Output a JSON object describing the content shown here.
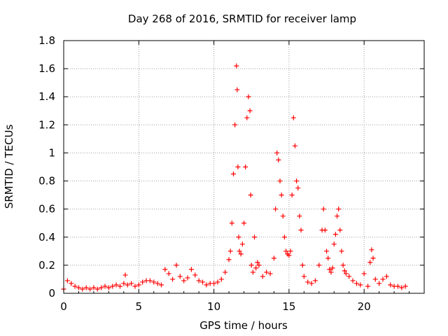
{
  "chart_data": {
    "type": "scatter",
    "title": "Day 268 of 2016, SRMTID for receiver lamp",
    "xlabel": "GPS time / hours",
    "ylabel": "SRMTID / TECUs",
    "xlim": [
      0,
      24
    ],
    "ylim": [
      0,
      1.8
    ],
    "xticks": [
      0,
      5,
      10,
      15,
      20
    ],
    "yticks": [
      0,
      0.2,
      0.4,
      0.6,
      0.8,
      1,
      1.2,
      1.4,
      1.6,
      1.8
    ],
    "xtick_labels": [
      "0",
      "5",
      "10",
      "15",
      "20"
    ],
    "ytick_labels": [
      "0",
      "0.2",
      "0.4",
      "0.6",
      "0.8",
      "1",
      "1.2",
      "1.4",
      "1.6",
      "1.8"
    ],
    "grid": true,
    "marker": "+",
    "color": "#ff0000",
    "series": [
      {
        "name": "SRMTID",
        "x": [
          0.0,
          0.25,
          0.5,
          0.75,
          1.0,
          1.25,
          1.5,
          1.75,
          2.0,
          2.25,
          2.5,
          2.75,
          3.0,
          3.25,
          3.5,
          3.75,
          4.0,
          4.1,
          4.25,
          4.5,
          4.75,
          5.0,
          5.25,
          5.5,
          5.75,
          6.0,
          6.25,
          6.5,
          6.75,
          7.0,
          7.25,
          7.5,
          7.75,
          8.0,
          8.25,
          8.5,
          8.75,
          9.0,
          9.25,
          9.5,
          9.75,
          10.0,
          10.25,
          10.5,
          10.75,
          11.0,
          11.1,
          11.2,
          11.3,
          11.4,
          11.5,
          11.55,
          11.6,
          11.65,
          11.7,
          11.8,
          11.9,
          12.0,
          12.1,
          12.2,
          12.3,
          12.4,
          12.45,
          12.5,
          12.6,
          12.7,
          12.8,
          12.9,
          13.0,
          13.25,
          13.5,
          13.75,
          14.0,
          14.1,
          14.2,
          14.3,
          14.4,
          14.5,
          14.6,
          14.7,
          14.8,
          14.9,
          15.0,
          15.1,
          15.2,
          15.3,
          15.4,
          15.5,
          15.6,
          15.7,
          15.8,
          15.9,
          16.0,
          16.25,
          16.5,
          16.75,
          17.0,
          17.2,
          17.3,
          17.4,
          17.5,
          17.6,
          17.7,
          17.8,
          17.9,
          18.0,
          18.1,
          18.2,
          18.3,
          18.4,
          18.5,
          18.6,
          18.7,
          18.8,
          19.0,
          19.25,
          19.5,
          19.75,
          20.0,
          20.25,
          20.4,
          20.5,
          20.6,
          20.75,
          21.0,
          21.25,
          21.5,
          21.75,
          22.0,
          22.25,
          22.5,
          22.75
        ],
        "y": [
          0.03,
          0.09,
          0.07,
          0.05,
          0.04,
          0.03,
          0.04,
          0.03,
          0.04,
          0.03,
          0.04,
          0.05,
          0.04,
          0.05,
          0.06,
          0.05,
          0.07,
          0.13,
          0.06,
          0.07,
          0.05,
          0.06,
          0.08,
          0.09,
          0.09,
          0.08,
          0.07,
          0.06,
          0.17,
          0.14,
          0.1,
          0.2,
          0.12,
          0.09,
          0.11,
          0.17,
          0.13,
          0.09,
          0.08,
          0.06,
          0.07,
          0.07,
          0.08,
          0.1,
          0.15,
          0.24,
          0.3,
          0.5,
          0.85,
          1.2,
          1.62,
          1.45,
          0.9,
          0.4,
          0.3,
          0.28,
          0.35,
          0.5,
          0.9,
          1.25,
          1.4,
          1.3,
          0.7,
          0.2,
          0.15,
          0.4,
          0.18,
          0.22,
          0.2,
          0.12,
          0.15,
          0.14,
          0.25,
          0.6,
          1.0,
          0.95,
          0.8,
          0.7,
          0.55,
          0.4,
          0.3,
          0.28,
          0.27,
          0.3,
          0.7,
          1.25,
          1.05,
          0.8,
          0.75,
          0.55,
          0.45,
          0.2,
          0.12,
          0.08,
          0.07,
          0.09,
          0.2,
          0.45,
          0.6,
          0.45,
          0.3,
          0.25,
          0.17,
          0.15,
          0.18,
          0.35,
          0.42,
          0.55,
          0.6,
          0.45,
          0.3,
          0.2,
          0.16,
          0.14,
          0.12,
          0.09,
          0.07,
          0.06,
          0.14,
          0.05,
          0.22,
          0.31,
          0.25,
          0.1,
          0.07,
          0.1,
          0.12,
          0.06,
          0.05,
          0.05,
          0.04,
          0.05
        ]
      }
    ]
  }
}
